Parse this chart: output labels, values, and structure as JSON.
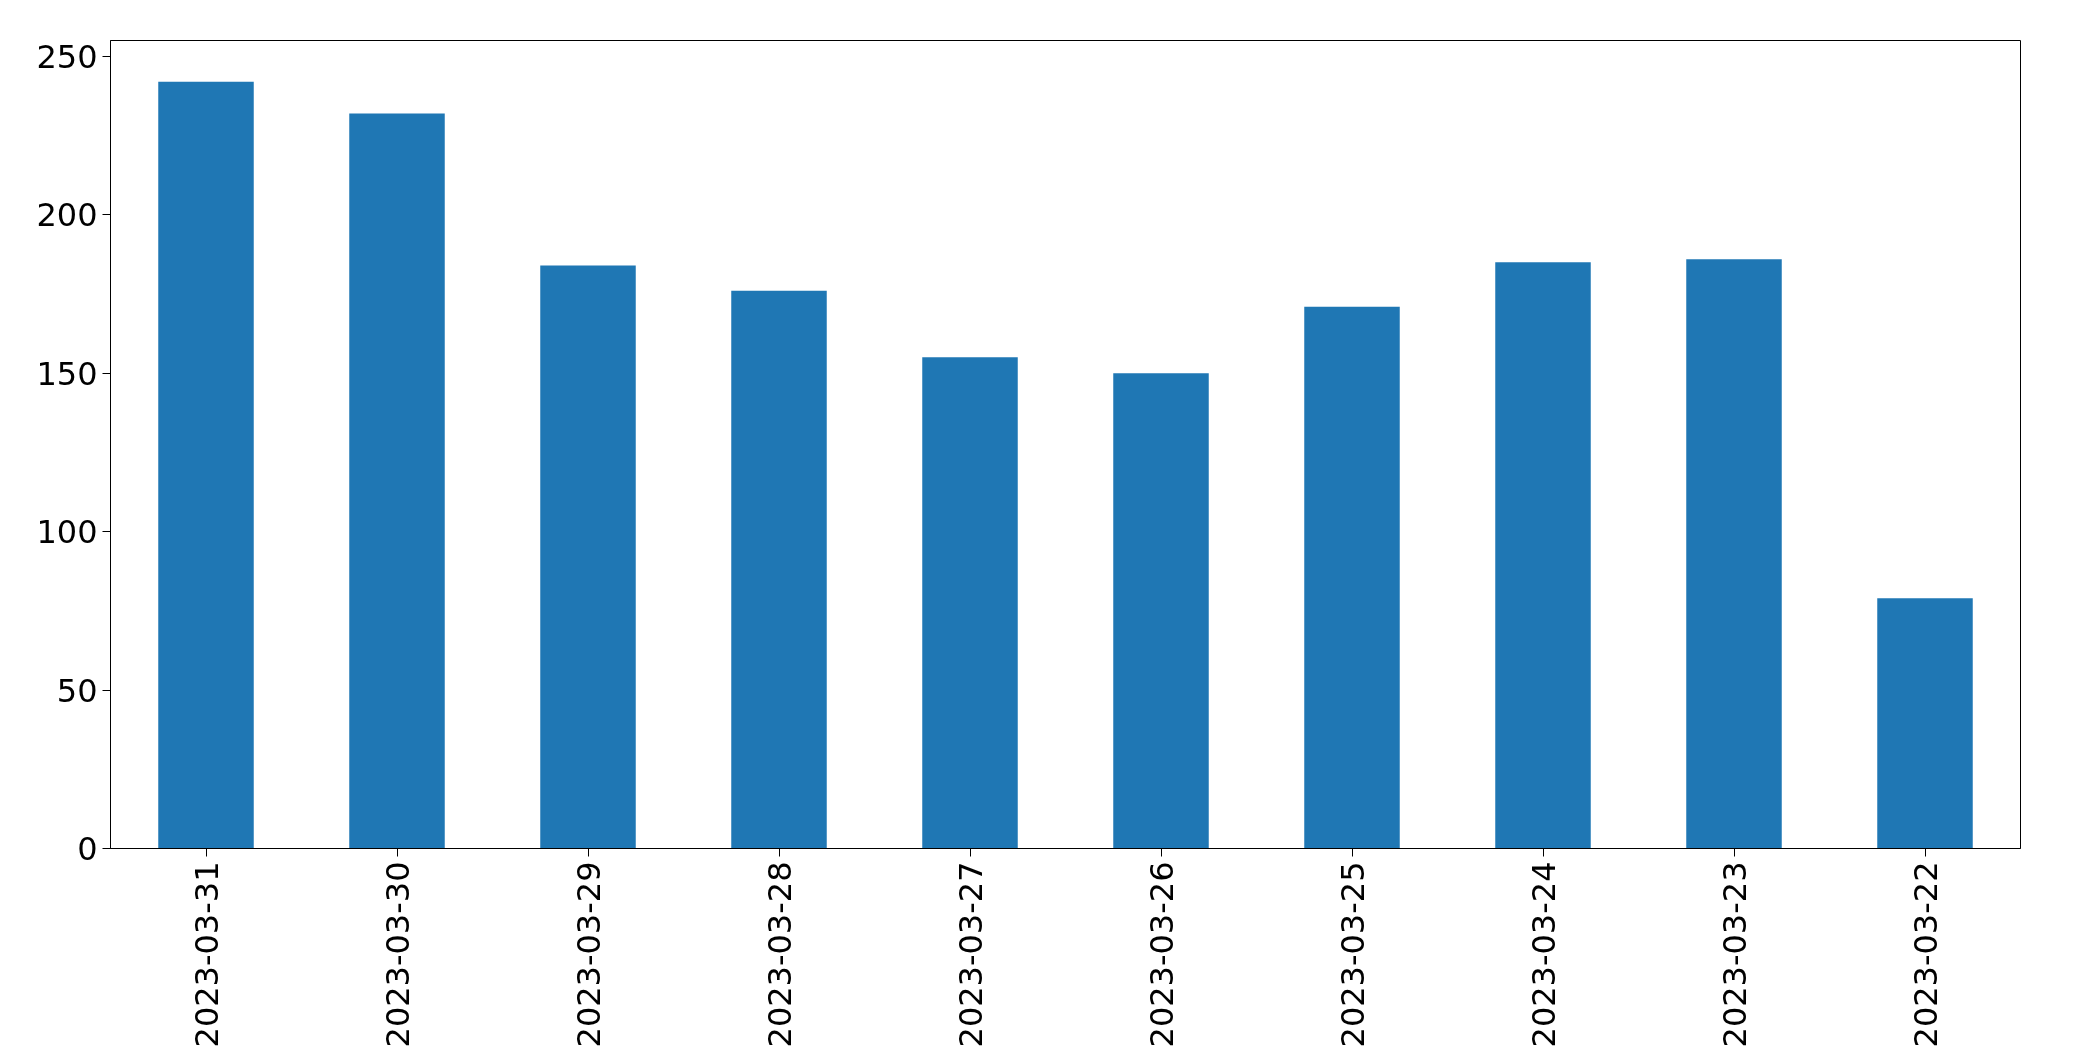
{
  "chart_data": {
    "type": "bar",
    "categories": [
      "2023-03-31",
      "2023-03-30",
      "2023-03-29",
      "2023-03-28",
      "2023-03-27",
      "2023-03-26",
      "2023-03-25",
      "2023-03-24",
      "2023-03-23",
      "2023-03-22"
    ],
    "values": [
      242,
      232,
      184,
      176,
      155,
      150,
      171,
      185,
      186,
      79
    ],
    "color": "#1f77b4",
    "ylim": [
      0,
      255
    ],
    "yticks": [
      0,
      50,
      100,
      150,
      200,
      250
    ],
    "grid": false,
    "legend": false
  }
}
